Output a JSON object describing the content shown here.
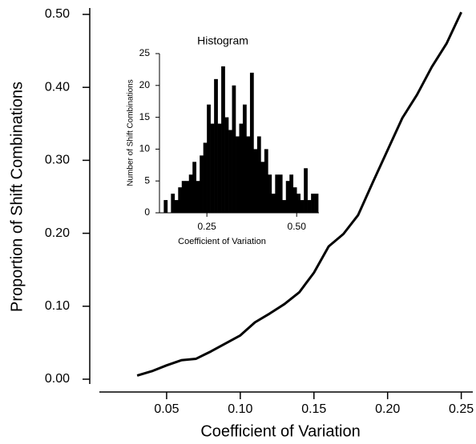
{
  "chart_data": [
    {
      "type": "line",
      "xlabel": "Coefficient of Variation",
      "ylabel": "Proportion of Shift Combinations",
      "x": [
        0.03,
        0.04,
        0.05,
        0.06,
        0.07,
        0.08,
        0.09,
        0.1,
        0.11,
        0.12,
        0.13,
        0.14,
        0.15,
        0.16,
        0.17,
        0.18,
        0.19,
        0.2,
        0.21,
        0.22,
        0.23,
        0.24,
        0.25
      ],
      "series": [
        {
          "color": "#000000",
          "values": [
            0.005,
            0.011,
            0.019,
            0.026,
            0.028,
            0.038,
            0.049,
            0.06,
            0.078,
            0.09,
            0.103,
            0.119,
            0.146,
            0.182,
            0.199,
            0.225,
            0.27,
            0.314,
            0.358,
            0.39,
            0.428,
            0.46,
            0.503
          ]
        }
      ],
      "xlim": [
        0,
        0.26
      ],
      "xticks": [
        0.05,
        {
          "value": 0.1,
          "label": "0.10"
        },
        0.15,
        {
          "value": 0.2,
          "label": "0.20"
        },
        0.25
      ],
      "ylim": [
        0,
        0.5
      ],
      "yticks": [
        {
          "value": 0,
          "label": "0.00"
        },
        {
          "value": 0.1,
          "label": "0.10"
        },
        {
          "value": 0.2,
          "label": "0.20"
        },
        {
          "value": 0.3,
          "label": "0.30"
        },
        {
          "value": 0.4,
          "label": "0.40"
        },
        {
          "value": 0.5,
          "label": "0.50"
        }
      ]
    },
    {
      "type": "histogram",
      "title": "Histogram",
      "xlabel": "Coefficient of Variation",
      "ylabel": "Number of Shift Combinations",
      "bins": [
        0.13,
        0.14,
        0.15,
        0.16,
        0.17,
        0.18,
        0.19,
        0.2,
        0.21,
        0.22,
        0.23,
        0.24,
        0.25,
        0.26,
        0.27,
        0.28,
        0.29,
        0.3,
        0.31,
        0.32,
        0.33,
        0.34,
        0.35,
        0.36,
        0.37,
        0.38,
        0.39,
        0.4,
        0.41,
        0.42,
        0.43,
        0.44,
        0.45,
        0.46,
        0.47,
        0.48,
        0.49,
        0.5,
        0.51,
        0.52,
        0.53,
        0.54,
        0.55,
        0.56
      ],
      "values": [
        2,
        0,
        3,
        2,
        4,
        5,
        5,
        6,
        8,
        5,
        9,
        11,
        17,
        14,
        21,
        14,
        23,
        15,
        13,
        20,
        12,
        14,
        17,
        12,
        22,
        10,
        12,
        8,
        10,
        6,
        3,
        6,
        6,
        2,
        5,
        6,
        4,
        3,
        2,
        7,
        2,
        3,
        3
      ],
      "color": "#000000",
      "xlim": [
        0.118,
        0.562
      ],
      "xticks": [
        0.25,
        {
          "value": 0.5,
          "label": "0.50"
        }
      ],
      "ylim": [
        0,
        25
      ],
      "yticks": [
        0,
        5,
        10,
        15,
        20,
        25
      ]
    }
  ]
}
